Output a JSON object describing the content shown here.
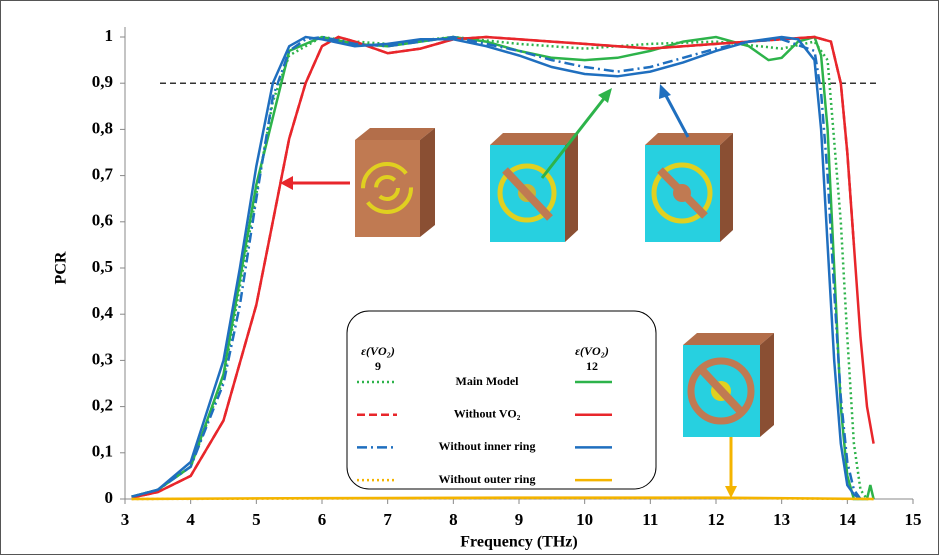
{
  "chart_data": {
    "type": "line",
    "x_label": "Frequency (THz)",
    "y_label": "PCR",
    "xlim": [
      3,
      15
    ],
    "ylim": [
      0,
      1
    ],
    "xticks": [
      3,
      4,
      5,
      6,
      7,
      8,
      9,
      10,
      11,
      12,
      13,
      14,
      15
    ],
    "yticks": [
      0,
      {
        "value": 0.1,
        "label": "0,1"
      },
      {
        "value": 0.2,
        "label": "0,2"
      },
      {
        "value": 0.3,
        "label": "0,3"
      },
      {
        "value": 0.4,
        "label": "0,4"
      },
      {
        "value": 0.5,
        "label": "0,5"
      },
      {
        "value": 0.6,
        "label": "0,6"
      },
      {
        "value": 0.7,
        "label": "0,7"
      },
      {
        "value": 0.8,
        "label": "0,8"
      },
      {
        "value": 0.9,
        "label": "0,9"
      },
      1
    ],
    "reference_line": 0.9,
    "legend_columns": [
      {
        "header": "ε(VO₂)",
        "label": "9"
      },
      {
        "header": "ε(VO₂)",
        "label": "12"
      }
    ],
    "series": [
      {
        "name": "Main Model",
        "lines": [
          {
            "color": "#2db34a",
            "dash": "dotted",
            "x": [
              3.1,
              3.5,
              4,
              4.5,
              5,
              5.25,
              5.5,
              6,
              6.5,
              7,
              8,
              9,
              10,
              11,
              12,
              13,
              13.5,
              13.7,
              13.9,
              14,
              14.1,
              14.2,
              14.3
            ],
            "values": [
              0.005,
              0.02,
              0.07,
              0.26,
              0.66,
              0.86,
              0.96,
              1.0,
              0.99,
              0.985,
              1.0,
              0.985,
              0.975,
              0.985,
              0.99,
              0.975,
              0.99,
              0.95,
              0.6,
              0.35,
              0.12,
              0.02,
              0
            ]
          },
          {
            "color": "#2db34a",
            "dash": "solid",
            "x": [
              3.1,
              3.5,
              4,
              4.5,
              5,
              5.5,
              6,
              6.5,
              7,
              8,
              8.5,
              9,
              9.5,
              10,
              10.5,
              11,
              11.5,
              12,
              12.5,
              12.8,
              13,
              13.25,
              13.5,
              13.6,
              13.7,
              13.8,
              13.9,
              14,
              14.1,
              14.3,
              14.35,
              14.4
            ],
            "values": [
              0.005,
              0.02,
              0.07,
              0.27,
              0.68,
              0.97,
              1.0,
              0.985,
              0.98,
              1.0,
              0.99,
              0.97,
              0.955,
              0.95,
              0.955,
              0.97,
              0.99,
              1.0,
              0.98,
              0.95,
              0.955,
              0.99,
              1.0,
              0.96,
              0.8,
              0.5,
              0.2,
              0.05,
              0,
              0,
              0.03,
              0
            ]
          }
        ]
      },
      {
        "name": "Without VO₂",
        "lines": [
          {
            "color": "#e8262b",
            "dash": "dashed",
            "x": [
              3.1,
              3.5,
              4,
              4.5,
              5,
              5.25,
              5.5,
              5.75,
              6,
              6.25,
              6.5,
              7,
              7.5,
              8,
              8.5,
              9,
              10,
              11,
              12,
              13,
              13.5,
              13.75,
              13.9,
              14,
              14.1
            ],
            "values": [
              0.003,
              0.015,
              0.05,
              0.17,
              0.42,
              0.6,
              0.78,
              0.9,
              0.98,
              1.0,
              0.99,
              0.965,
              0.975,
              0.995,
              1.0,
              0.995,
              0.985,
              0.975,
              0.985,
              0.995,
              1.0,
              0.99,
              0.9,
              0.75,
              0.55
            ]
          },
          {
            "color": "#e8262b",
            "dash": "solid",
            "x": [
              3.1,
              3.5,
              4,
              4.5,
              5,
              5.25,
              5.5,
              5.75,
              6,
              6.25,
              6.5,
              7,
              7.5,
              8,
              8.5,
              9,
              9.5,
              10,
              10.5,
              11,
              11.5,
              12,
              12.5,
              13,
              13.5,
              13.75,
              13.9,
              14,
              14.1,
              14.2,
              14.3,
              14.4
            ],
            "values": [
              0.003,
              0.015,
              0.05,
              0.17,
              0.42,
              0.6,
              0.78,
              0.9,
              0.98,
              1.0,
              0.99,
              0.965,
              0.975,
              0.995,
              1.0,
              0.995,
              0.99,
              0.985,
              0.98,
              0.975,
              0.98,
              0.985,
              0.99,
              0.995,
              1.0,
              0.99,
              0.9,
              0.75,
              0.55,
              0.35,
              0.2,
              0.12
            ]
          }
        ]
      },
      {
        "name": "Without inner ring",
        "lines": [
          {
            "color": "#1f6fbf",
            "dash": "dashdot",
            "x": [
              3.1,
              3.5,
              4,
              4.5,
              4.75,
              5,
              5.25,
              5.5,
              5.75,
              6,
              6.5,
              7,
              7.5,
              8,
              8.5,
              9,
              9.5,
              10,
              10.5,
              11,
              11.5,
              12,
              12.5,
              13,
              13.5,
              13.6,
              13.7,
              13.8,
              13.9,
              14,
              14.1,
              14.2
            ],
            "values": [
              0.005,
              0.02,
              0.07,
              0.25,
              0.42,
              0.65,
              0.87,
              0.97,
              0.995,
              1.0,
              0.985,
              0.98,
              0.99,
              1.0,
              0.985,
              0.97,
              0.95,
              0.935,
              0.925,
              0.935,
              0.955,
              0.975,
              0.99,
              0.995,
              0.97,
              0.88,
              0.7,
              0.45,
              0.22,
              0.08,
              0.02,
              0
            ]
          },
          {
            "color": "#1f6fbf",
            "dash": "solid",
            "x": [
              3.1,
              3.5,
              4,
              4.5,
              4.75,
              5,
              5.25,
              5.5,
              5.75,
              6,
              6.5,
              7,
              7.5,
              8,
              8.5,
              9,
              9.5,
              10,
              10.5,
              11,
              11.5,
              12,
              12.5,
              13,
              13.25,
              13.5,
              13.6,
              13.7,
              13.8,
              13.9,
              14,
              14.1,
              14.2
            ],
            "values": [
              0.005,
              0.02,
              0.08,
              0.3,
              0.5,
              0.72,
              0.9,
              0.98,
              1.0,
              0.995,
              0.98,
              0.985,
              0.995,
              0.995,
              0.98,
              0.96,
              0.935,
              0.92,
              0.915,
              0.925,
              0.945,
              0.97,
              0.99,
              1.0,
              0.995,
              0.95,
              0.8,
              0.55,
              0.3,
              0.12,
              0.03,
              0.01,
              0
            ]
          }
        ]
      },
      {
        "name": "Without outer ring",
        "lines": [
          {
            "color": "#f4b400",
            "dash": "dotted",
            "x": [
              3.1,
              6,
              9,
              12,
              14.4
            ],
            "values": [
              0,
              0.001,
              0.002,
              0.002,
              0
            ]
          },
          {
            "color": "#f4b400",
            "dash": "solid",
            "x": [
              3.1,
              6,
              9,
              12,
              14.4
            ],
            "values": [
              0,
              0.002,
              0.003,
              0.003,
              0
            ]
          }
        ]
      }
    ]
  }
}
